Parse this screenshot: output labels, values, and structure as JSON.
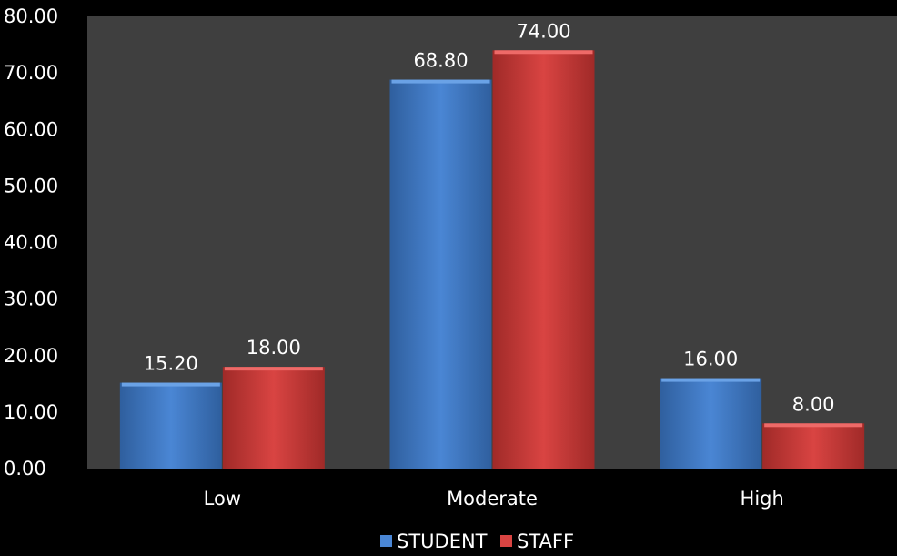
{
  "chart_data": {
    "type": "bar",
    "categories": [
      "Low",
      "Moderate",
      "High"
    ],
    "series": [
      {
        "name": "STUDENT",
        "values": [
          15.2,
          68.8,
          16.0
        ],
        "labels": [
          "15.20",
          "68.80",
          "16.00"
        ]
      },
      {
        "name": "STAFF",
        "values": [
          18.0,
          74.0,
          8.0
        ],
        "labels": [
          "18.00",
          "74.00",
          "8.00"
        ]
      }
    ],
    "yticks": [
      "0.00",
      "10.00",
      "20.00",
      "30.00",
      "40.00",
      "50.00",
      "60.00",
      "70.00",
      "80.00"
    ],
    "ylim": [
      0,
      80
    ],
    "grid": false,
    "legend_position": "bottom",
    "colors": {
      "STUDENT": "#4a86d4",
      "STAFF": "#d94442",
      "plot_background": "#3f3f3f",
      "page_background": "#000000",
      "text": "#ffffff"
    }
  }
}
